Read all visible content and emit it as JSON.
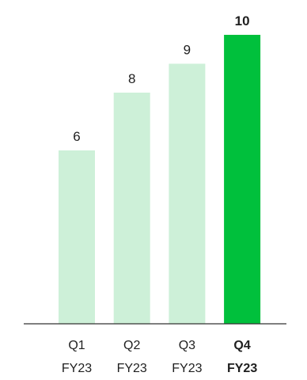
{
  "chart_data": {
    "type": "bar",
    "categories": [
      {
        "line1": "Q1",
        "line2": "FY23"
      },
      {
        "line1": "Q2",
        "line2": "FY23"
      },
      {
        "line1": "Q3",
        "line2": "FY23"
      },
      {
        "line1": "Q4",
        "line2": "FY23"
      }
    ],
    "values": [
      6,
      8,
      9,
      10
    ],
    "value_labels": [
      "6",
      "8",
      "9",
      "10"
    ],
    "highlight_index": 3,
    "ylim": [
      0,
      10
    ],
    "grid": false,
    "title": "",
    "xlabel": "",
    "ylabel": ""
  },
  "colors": {
    "bar_default": "#cdf0d8",
    "bar_highlight": "#00c03c",
    "text": "#1f1f1f",
    "axis": "#333333"
  }
}
